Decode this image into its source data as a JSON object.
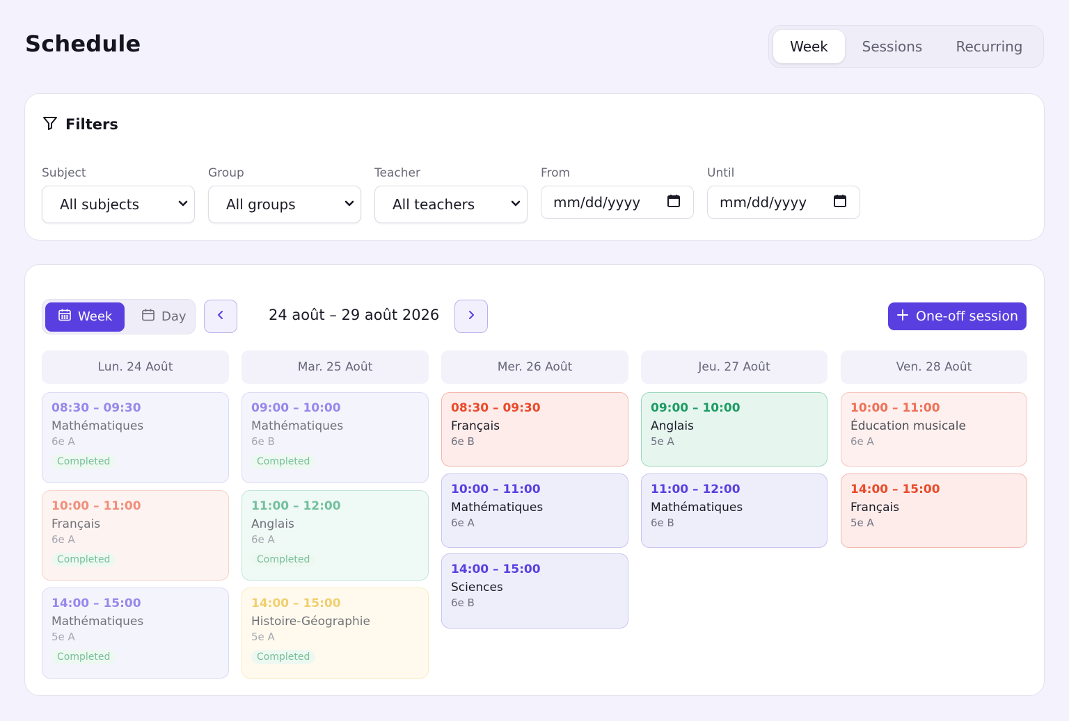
{
  "page": {
    "title": "Schedule"
  },
  "top_tabs": [
    {
      "label": "Week",
      "active": true
    },
    {
      "label": "Sessions",
      "active": false
    },
    {
      "label": "Recurring",
      "active": false
    }
  ],
  "filters": {
    "title": "Filters",
    "subject": {
      "label": "Subject",
      "value": "All subjects"
    },
    "group": {
      "label": "Group",
      "value": "All groups"
    },
    "teacher": {
      "label": "Teacher",
      "value": "All teachers"
    },
    "from": {
      "label": "From",
      "placeholder": "mm/dd/yyyy"
    },
    "until": {
      "label": "Until",
      "placeholder": "mm/dd/yyyy"
    }
  },
  "calendar": {
    "view_week": "Week",
    "view_day": "Day",
    "range": "24 août – 29 août 2026",
    "oneoff": "One-off session",
    "days": [
      {
        "header": "Lun. 24 Août",
        "sessions": [
          {
            "time": "08:30 – 09:30",
            "subject": "Mathématiques",
            "group": "6e A",
            "status": "Completed",
            "color": "purple"
          },
          {
            "time": "10:00 – 11:00",
            "subject": "Français",
            "group": "6e A",
            "status": "Completed",
            "color": "red"
          },
          {
            "time": "14:00 – 15:00",
            "subject": "Mathématiques",
            "group": "5e A",
            "status": "Completed",
            "color": "purple"
          }
        ]
      },
      {
        "header": "Mar. 25 Août",
        "sessions": [
          {
            "time": "09:00 – 10:00",
            "subject": "Mathématiques",
            "group": "6e B",
            "status": "Completed",
            "color": "purple"
          },
          {
            "time": "11:00 – 12:00",
            "subject": "Anglais",
            "group": "6e A",
            "status": "Completed",
            "color": "green"
          },
          {
            "time": "14:00 – 15:00",
            "subject": "Histoire-Géographie",
            "group": "5e A",
            "status": "Completed",
            "color": "yellow"
          }
        ]
      },
      {
        "header": "Mer. 26 Août",
        "sessions": [
          {
            "time": "08:30 – 09:30",
            "subject": "Français",
            "group": "6e B",
            "status": "",
            "color": "red"
          },
          {
            "time": "10:00 – 11:00",
            "subject": "Mathématiques",
            "group": "6e A",
            "status": "",
            "color": "purple"
          },
          {
            "time": "14:00 – 15:00",
            "subject": "Sciences",
            "group": "6e B",
            "status": "",
            "color": "purple"
          }
        ]
      },
      {
        "header": "Jeu. 27 Août",
        "sessions": [
          {
            "time": "09:00 – 10:00",
            "subject": "Anglais",
            "group": "5e A",
            "status": "",
            "color": "green"
          },
          {
            "time": "11:00 – 12:00",
            "subject": "Mathématiques",
            "group": "6e B",
            "status": "",
            "color": "purple"
          }
        ]
      },
      {
        "header": "Ven. 28 Août",
        "sessions": [
          {
            "time": "10:00 – 11:00",
            "subject": "Éducation musicale",
            "group": "6e A",
            "status": "",
            "color": "red"
          },
          {
            "time": "14:00 – 15:00",
            "subject": "Français",
            "group": "5e A",
            "status": "",
            "color": "red"
          }
        ]
      }
    ]
  },
  "colors": {
    "accent": "#5a3fe0",
    "purple": "#5a3fe0",
    "red": "#ea4a2a",
    "green": "#1e9a63",
    "yellow": "#e9b118",
    "completed": "#23985a"
  }
}
